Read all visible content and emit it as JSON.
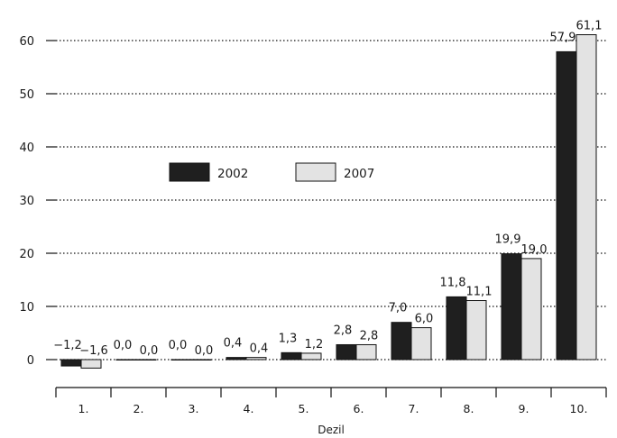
{
  "chart_data": {
    "type": "bar",
    "xlabel": "Dezil",
    "ylabel": "",
    "ylim": [
      -5,
      65
    ],
    "yticks": [
      0,
      10,
      20,
      30,
      40,
      50,
      60
    ],
    "grid": "horizontal dotted",
    "legend_position": "left",
    "categories": [
      "1.",
      "2.",
      "3.",
      "4.",
      "5.",
      "6.",
      "7.",
      "8.",
      "9.",
      "10."
    ],
    "series": [
      {
        "name": "2002",
        "color": "#1f1f1f",
        "values": [
          -1.2,
          0.0,
          0.0,
          0.4,
          1.3,
          2.8,
          7.0,
          11.8,
          19.9,
          57.9
        ],
        "labels": [
          "−1,2",
          "0,0",
          "0,0",
          "0,4",
          "1,3",
          "2,8",
          "7,0",
          "11,8",
          "19,9",
          "57,9"
        ]
      },
      {
        "name": "2007",
        "color": "#e3e3e3",
        "values": [
          -1.6,
          0.0,
          0.0,
          0.4,
          1.2,
          2.8,
          6.0,
          11.1,
          19.0,
          61.1
        ],
        "labels": [
          "−1,6",
          "0,0",
          "0,0",
          "0,4",
          "1,2",
          "2,8",
          "6,0",
          "11,1",
          "19,0",
          "61,1"
        ]
      }
    ]
  }
}
